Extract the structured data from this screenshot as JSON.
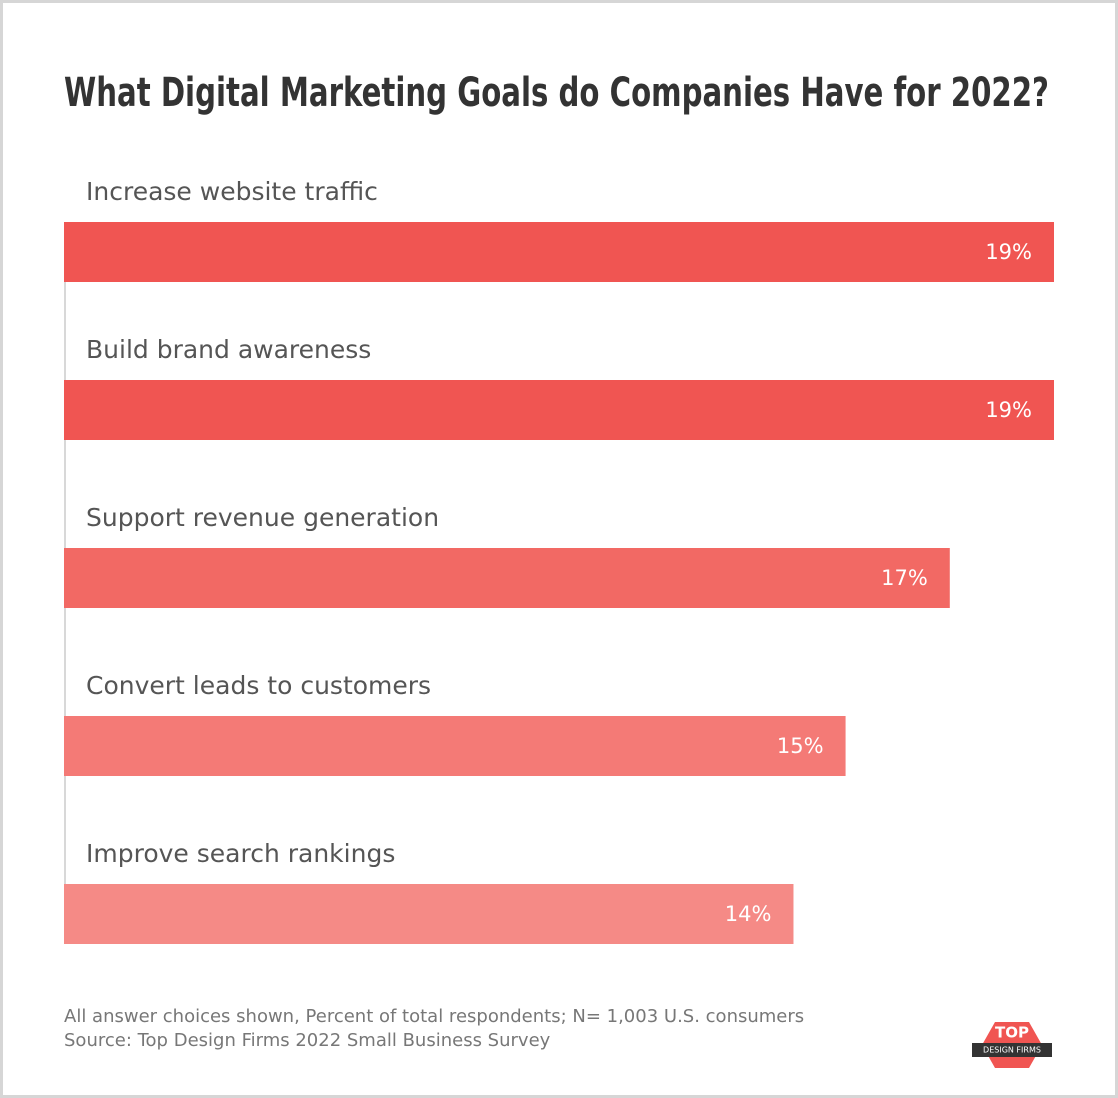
{
  "chart_data": {
    "type": "bar",
    "orientation": "horizontal",
    "title": "What Digital Marketing Goals do Companies Have for 2022?",
    "categories": [
      "Increase website traffic",
      "Build brand awareness",
      "Support revenue generation",
      "Convert leads to customers",
      "Improve search rankings"
    ],
    "values": [
      19,
      19,
      17,
      15,
      14
    ],
    "value_labels": [
      "19%",
      "19%",
      "17%",
      "15%",
      "14%"
    ],
    "colors": [
      "#f05552",
      "#f05552",
      "#f26964",
      "#f47a76",
      "#f58a86"
    ],
    "notes": [
      "All answer choices shown, Percent of total respondents; N= 1,003 U.S. consumers",
      "Source: Top Design Firms 2022 Small Business Survey"
    ],
    "logo": {
      "top": "TOP",
      "sub": "DESIGN FIRMS"
    }
  }
}
